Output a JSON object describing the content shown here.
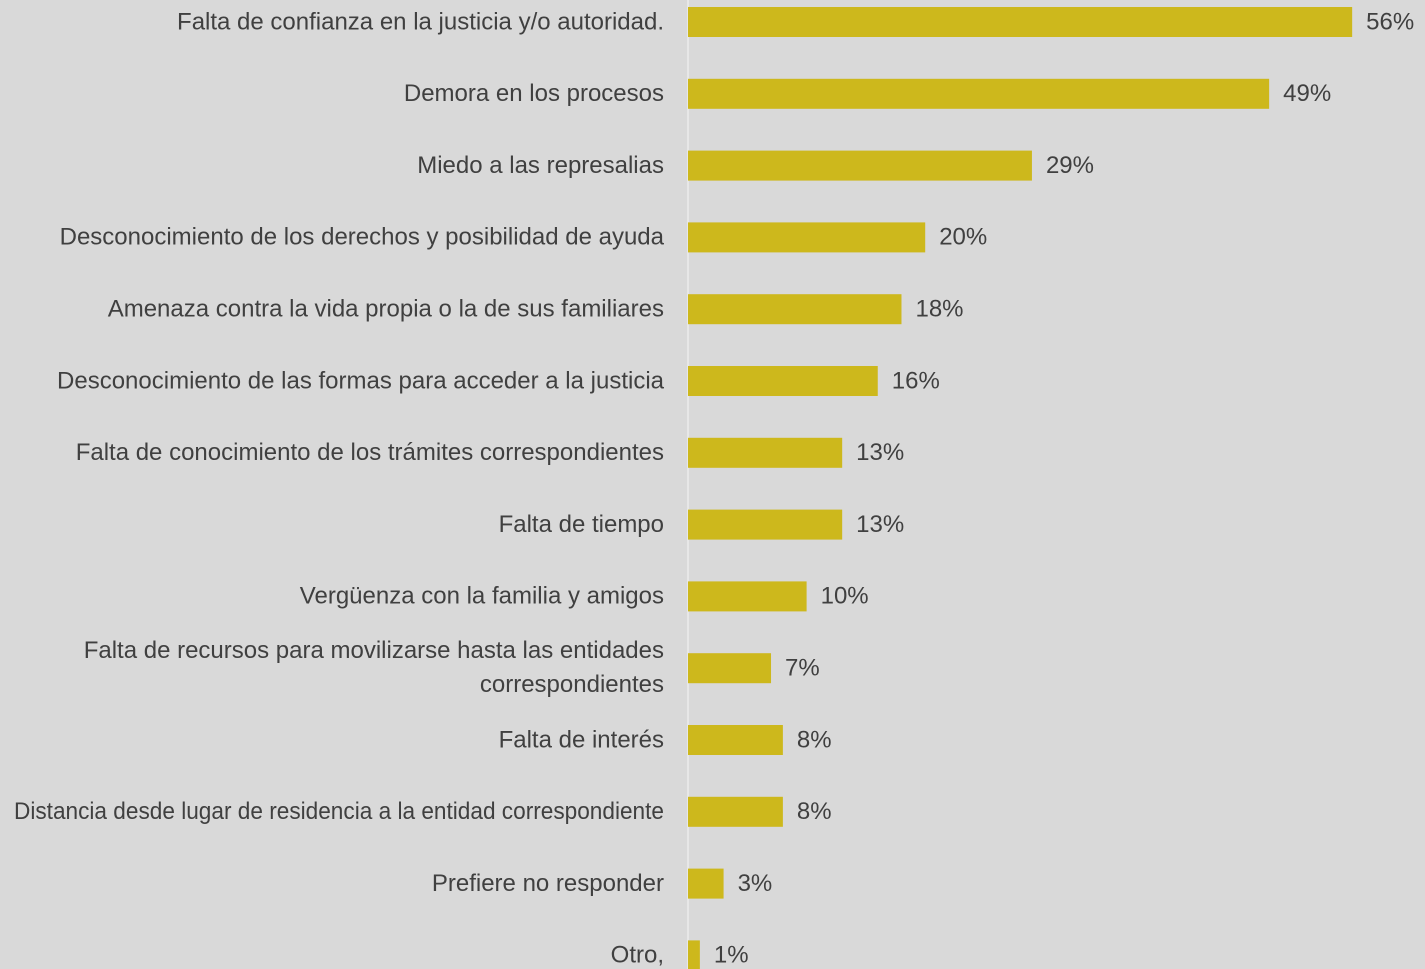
{
  "chart_data": {
    "type": "bar",
    "orientation": "horizontal",
    "color": "#cdb81c",
    "categories": [
      "Falta de confianza en la justicia y/o autoridad.",
      "Demora en los procesos",
      "Miedo a las represalias",
      "Desconocimiento de los derechos y posibilidad de ayuda",
      "Amenaza contra la vida propia o la de sus familiares",
      "Desconocimiento de las formas para acceder a la justicia",
      "Falta de conocimiento de los trámites correspondientes",
      "Falta de tiempo",
      "Vergüenza con la familia y amigos",
      "Falta de recursos para movilizarse hasta las entidades correspondientes",
      "Falta de interés",
      "Distancia desde lugar de residencia a la entidad correspondiente",
      "Prefiere no responder",
      "Otro,"
    ],
    "values": [
      56,
      49,
      29,
      20,
      18,
      16,
      13,
      13,
      10,
      7,
      8,
      8,
      3,
      1
    ],
    "value_labels": [
      "56%",
      "49%",
      "29%",
      "20%",
      "18%",
      "16%",
      "13%",
      "13%",
      "10%",
      "7%",
      "8%",
      "8%",
      "3%",
      "1%"
    ]
  }
}
